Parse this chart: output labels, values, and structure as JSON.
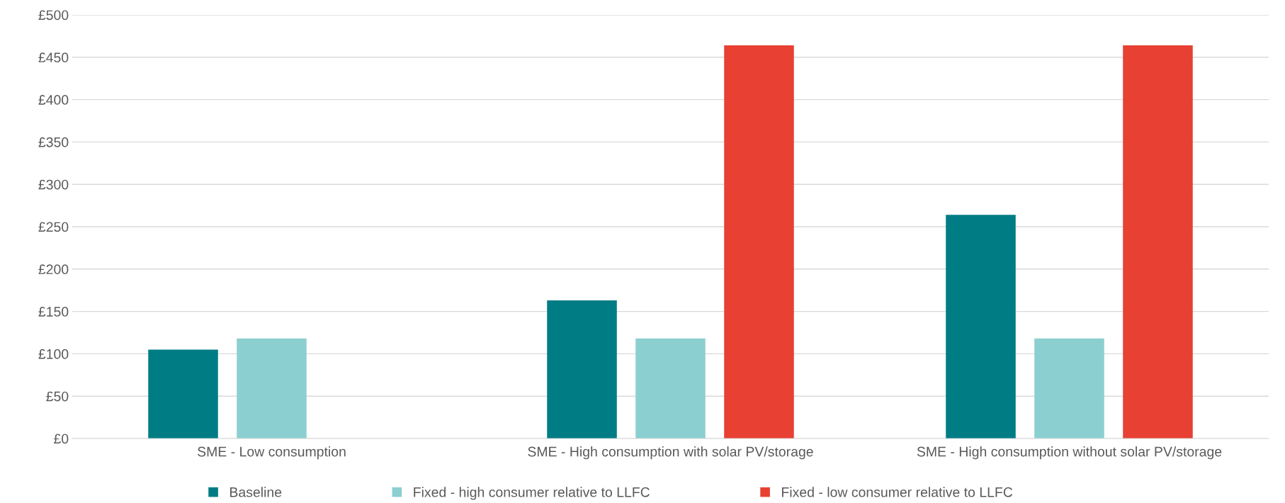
{
  "chart_data": {
    "type": "bar",
    "categories": [
      "SME - Low consumption",
      "SME - High consumption with solar PV/storage",
      "SME - High consumption without solar PV/storage"
    ],
    "series": [
      {
        "name": "Baseline",
        "color": "#007c85",
        "values": [
          105,
          163,
          264
        ]
      },
      {
        "name": "Fixed - high consumer relative to LLFC",
        "color": "#8ccfd0",
        "values": [
          118,
          118,
          118
        ]
      },
      {
        "name": "Fixed - low consumer relative to LLFC",
        "color": "#e84033",
        "values": [
          null,
          464,
          464
        ]
      }
    ],
    "ylim": [
      0,
      500
    ],
    "yticks": [
      {
        "value": 0,
        "label": "£0"
      },
      {
        "value": 50,
        "label": "£50"
      },
      {
        "value": 100,
        "label": "£100"
      },
      {
        "value": 150,
        "label": "£150"
      },
      {
        "value": 200,
        "label": "£200"
      },
      {
        "value": 250,
        "label": "£250"
      },
      {
        "value": 300,
        "label": "£300"
      },
      {
        "value": 350,
        "label": "£350"
      },
      {
        "value": 400,
        "label": "£400"
      },
      {
        "value": 450,
        "label": "£450"
      },
      {
        "value": 500,
        "label": "£500"
      }
    ],
    "grid": "y",
    "legend": "bottom"
  }
}
